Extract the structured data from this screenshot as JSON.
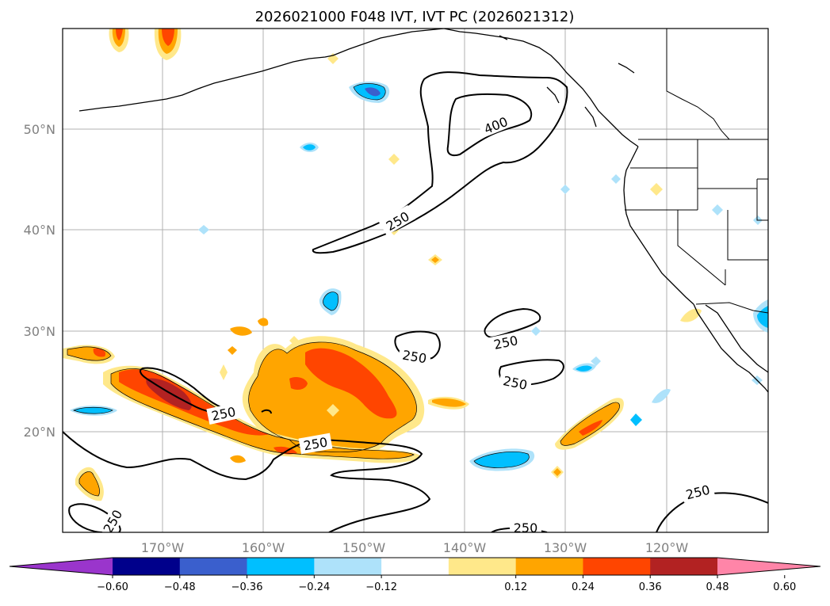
{
  "title": "2026021000 F048 IVT, IVT PC (2026021312)",
  "lat_ticks": [
    "50°N",
    "40°N",
    "30°N",
    "20°N"
  ],
  "lon_ticks": [
    "170°W",
    "160°W",
    "150°W",
    "140°W",
    "130°W",
    "120°W"
  ],
  "contour_labels": {
    "c400": "400",
    "c250_a": "250",
    "c250_b": "250",
    "c250_c": "250",
    "c250_d": "250",
    "c250_e": "250",
    "c250_f": "250",
    "c250_g": "250",
    "c250_h": "250",
    "c250_i": "250"
  },
  "colorbar": {
    "tick_labels": [
      "−0.60",
      "−0.48",
      "−0.36",
      "−0.24",
      "−0.12",
      "0.12",
      "0.24",
      "0.36",
      "0.48",
      "0.60"
    ],
    "colors": [
      "#9a35cc",
      "#00008b",
      "#3a5fcd",
      "#00bfff",
      "#aee2fa",
      "#ffffff",
      "#ffe88a",
      "#ffa500",
      "#ff4500",
      "#b22222",
      "#ff85a8"
    ]
  },
  "palette": {
    "neg_light": "#aee2fa",
    "neg_mid": "#00bfff",
    "neg_dark": "#3a5fcd",
    "pos_light": "#ffe88a",
    "pos_mid": "#ffa500",
    "pos_high": "#ff4500",
    "pos_max": "#b22222"
  }
}
